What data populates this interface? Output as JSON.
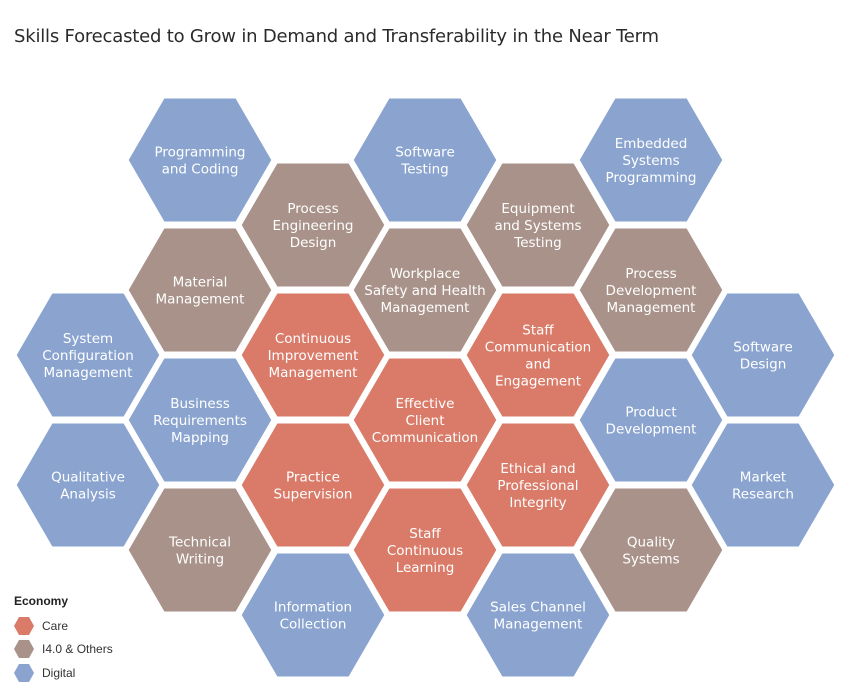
{
  "title": "Skills Forecasted to Grow in Demand and Transferability in the Near Term",
  "colors": {
    "care": "#d97b68",
    "i40": "#a89289",
    "digital": "#8aa4cf"
  },
  "legend": {
    "title": "Economy",
    "items": [
      {
        "label": "Care",
        "category": "care"
      },
      {
        "label": "I4.0 & Others",
        "category": "i40"
      },
      {
        "label": "Digital",
        "category": "digital"
      }
    ]
  },
  "hexes": [
    {
      "lines": [
        "Programming",
        "and Coding"
      ],
      "category": "digital"
    },
    {
      "lines": [
        "Software",
        "Testing"
      ],
      "category": "digital"
    },
    {
      "lines": [
        "Embedded",
        "Systems",
        "Programming"
      ],
      "category": "digital"
    },
    {
      "lines": [
        "Process",
        "Engineering",
        "Design"
      ],
      "category": "i40"
    },
    {
      "lines": [
        "Equipment",
        "and Systems",
        "Testing"
      ],
      "category": "i40"
    },
    {
      "lines": [
        "Material",
        "Management"
      ],
      "category": "i40"
    },
    {
      "lines": [
        "Workplace",
        "Safety and Health",
        "Management"
      ],
      "category": "i40"
    },
    {
      "lines": [
        "Process",
        "Development",
        "Management"
      ],
      "category": "i40"
    },
    {
      "lines": [
        "System",
        "Configuration",
        "Management"
      ],
      "category": "digital"
    },
    {
      "lines": [
        "Continuous",
        "Improvement",
        "Management"
      ],
      "category": "care"
    },
    {
      "lines": [
        "Staff",
        "Communication",
        "and",
        "Engagement"
      ],
      "category": "care"
    },
    {
      "lines": [
        "Software",
        "Design"
      ],
      "category": "digital"
    },
    {
      "lines": [
        "Business",
        "Requirements",
        "Mapping"
      ],
      "category": "digital"
    },
    {
      "lines": [
        "Effective",
        "Client",
        "Communication"
      ],
      "category": "care"
    },
    {
      "lines": [
        "Product",
        "Development"
      ],
      "category": "digital"
    },
    {
      "lines": [
        "Qualitative",
        "Analysis"
      ],
      "category": "digital"
    },
    {
      "lines": [
        "Practice",
        "Supervision"
      ],
      "category": "care"
    },
    {
      "lines": [
        "Ethical and",
        "Professional",
        "Integrity"
      ],
      "category": "care"
    },
    {
      "lines": [
        "Market",
        "Research"
      ],
      "category": "digital"
    },
    {
      "lines": [
        "Technical",
        "Writing"
      ],
      "category": "i40"
    },
    {
      "lines": [
        "Staff",
        "Continuous",
        "Learning"
      ],
      "category": "care"
    },
    {
      "lines": [
        "Quality",
        "Systems"
      ],
      "category": "i40"
    },
    {
      "lines": [
        "Information",
        "Collection"
      ],
      "category": "digital"
    },
    {
      "lines": [
        "Sales Channel",
        "Management"
      ],
      "category": "digital"
    }
  ]
}
